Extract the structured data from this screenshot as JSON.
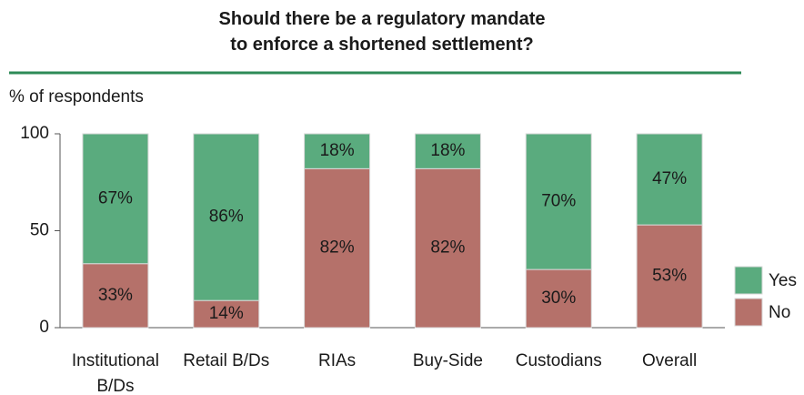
{
  "chart_data": {
    "type": "stacked_bar",
    "title": "Should there be a regulatory mandate\nto enforce a shortened settlement?",
    "y_label": "% of respondents",
    "categories": [
      "Institutional\nB/Ds",
      "Retail B/Ds",
      "RIAs",
      "Buy-Side",
      "Custodians",
      "Overall"
    ],
    "series": [
      {
        "name": "No",
        "color": "#b5716a",
        "values": [
          33,
          14,
          82,
          82,
          30,
          53
        ],
        "value_labels": [
          "33%",
          "14%",
          "82%",
          "82%",
          "30%",
          "53%"
        ]
      },
      {
        "name": "Yes",
        "color": "#5aab7e",
        "values": [
          67,
          86,
          18,
          18,
          70,
          47
        ],
        "value_labels": [
          "67%",
          "86%",
          "18%",
          "18%",
          "70%",
          "47%"
        ]
      }
    ],
    "ylim": [
      0,
      100
    ],
    "yticks": [
      0,
      50,
      100
    ],
    "legend": "right"
  }
}
